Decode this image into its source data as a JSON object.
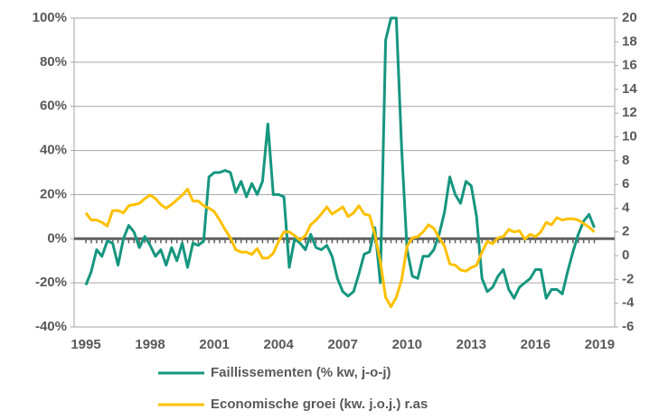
{
  "chart_data": {
    "type": "line",
    "x": [
      1995,
      1995.25,
      1995.5,
      1995.75,
      1996,
      1996.25,
      1996.5,
      1996.75,
      1997,
      1997.25,
      1997.5,
      1997.75,
      1998,
      1998.25,
      1998.5,
      1998.75,
      1999,
      1999.25,
      1999.5,
      1999.75,
      2000,
      2000.25,
      2000.5,
      2000.75,
      2001,
      2001.25,
      2001.5,
      2001.75,
      2002,
      2002.25,
      2002.5,
      2002.75,
      2003,
      2003.25,
      2003.5,
      2003.75,
      2004,
      2004.25,
      2004.5,
      2004.75,
      2005,
      2005.25,
      2005.5,
      2005.75,
      2006,
      2006.25,
      2006.5,
      2006.75,
      2007,
      2007.25,
      2007.5,
      2007.75,
      2008,
      2008.25,
      2008.5,
      2008.75,
      2009,
      2009.25,
      2009.5,
      2009.75,
      2010,
      2010.25,
      2010.5,
      2010.75,
      2011,
      2011.25,
      2011.5,
      2011.75,
      2012,
      2012.25,
      2012.5,
      2012.75,
      2013,
      2013.25,
      2013.5,
      2013.75,
      2014,
      2014.25,
      2014.5,
      2014.75,
      2015,
      2015.25,
      2015.5,
      2015.75,
      2016,
      2016.25,
      2016.5,
      2016.75,
      2017,
      2017.25,
      2017.5,
      2017.75,
      2018,
      2018.25,
      2018.5,
      2018.75
    ],
    "series": [
      {
        "name": "Faillissementen (% kw, j-o-j)",
        "color": "#16967f",
        "values": [
          -21,
          -15,
          -5,
          -8,
          -1,
          -2,
          -12,
          0,
          6,
          3,
          -4,
          1,
          -3,
          -8,
          -5,
          -12,
          -4,
          -10,
          -2,
          -13,
          -2,
          -3,
          -1,
          28,
          30,
          30,
          31,
          30,
          21,
          26,
          19,
          25,
          20,
          26,
          52,
          20,
          20,
          19,
          -13,
          0,
          -2,
          -5,
          2,
          -4,
          -5,
          -3,
          -8,
          -18,
          -24,
          -26,
          -24,
          -16,
          -7,
          -6,
          5,
          -20,
          90,
          100,
          100,
          40,
          -5,
          -17,
          -18,
          -8,
          -8,
          -5,
          2,
          12,
          28,
          20,
          16,
          26,
          24,
          10,
          -18,
          -24,
          -22,
          -17,
          -14,
          -23,
          -27,
          -22,
          -20,
          -18,
          -14,
          -14,
          -27,
          -23,
          -23,
          -25,
          -15,
          -6,
          2,
          8,
          11,
          5
        ]
      },
      {
        "name": "Economische groei (kw. j.o.j.) r.as",
        "color": "#ffc000",
        "axis": "y2",
        "values": [
          3.6,
          3.0,
          3.0,
          2.8,
          2.5,
          3.8,
          3.8,
          3.6,
          4.2,
          4.3,
          4.4,
          4.8,
          5.1,
          4.8,
          4.3,
          4.0,
          4.3,
          4.7,
          5.1,
          5.6,
          4.6,
          4.6,
          4.2,
          4.0,
          3.7,
          3.0,
          2.2,
          1.5,
          0.5,
          0.3,
          0.3,
          0.1,
          0.6,
          -0.2,
          -0.2,
          0.2,
          1.2,
          2.0,
          2.0,
          1.7,
          1.3,
          1.7,
          2.6,
          3.0,
          3.5,
          4.1,
          3.5,
          3.8,
          4.1,
          3.3,
          3.6,
          4.2,
          3.5,
          3.4,
          1.8,
          -0.5,
          -3.5,
          -4.3,
          -3.5,
          -2.0,
          0.8,
          1.5,
          1.6,
          2.0,
          2.6,
          2.3,
          1.5,
          0.8,
          -0.7,
          -0.8,
          -1.2,
          -1.3,
          -1.0,
          -0.8,
          0.3,
          1.2,
          1.0,
          1.5,
          1.6,
          2.2,
          2.0,
          2.1,
          1.4,
          1.8,
          1.6,
          2.0,
          2.8,
          2.6,
          3.2,
          3.0,
          3.1,
          3.1,
          3.0,
          2.7,
          2.4,
          2.0
        ]
      }
    ],
    "xlim": [
      1994.45,
      2019.7
    ],
    "xticks": [
      1995,
      1998,
      2001,
      2004,
      2007,
      2010,
      2013,
      2016,
      2019
    ],
    "ylim": [
      -40,
      100
    ],
    "yticks": [
      {
        "value": -40,
        "label": "-40%"
      },
      {
        "value": -20,
        "label": "-20%"
      },
      {
        "value": 0,
        "label": "0%"
      },
      {
        "value": 20,
        "label": "20%"
      },
      {
        "value": 40,
        "label": "40%"
      },
      {
        "value": 60,
        "label": "60%"
      },
      {
        "value": 80,
        "label": "80%"
      },
      {
        "value": 100,
        "label": "100%"
      }
    ],
    "y2lim": [
      -6,
      20
    ],
    "y2ticks": [
      -6,
      -4,
      -2,
      0,
      2,
      4,
      6,
      8,
      10,
      12,
      14,
      16,
      18,
      20
    ],
    "grid": true,
    "legend": "bottom"
  }
}
